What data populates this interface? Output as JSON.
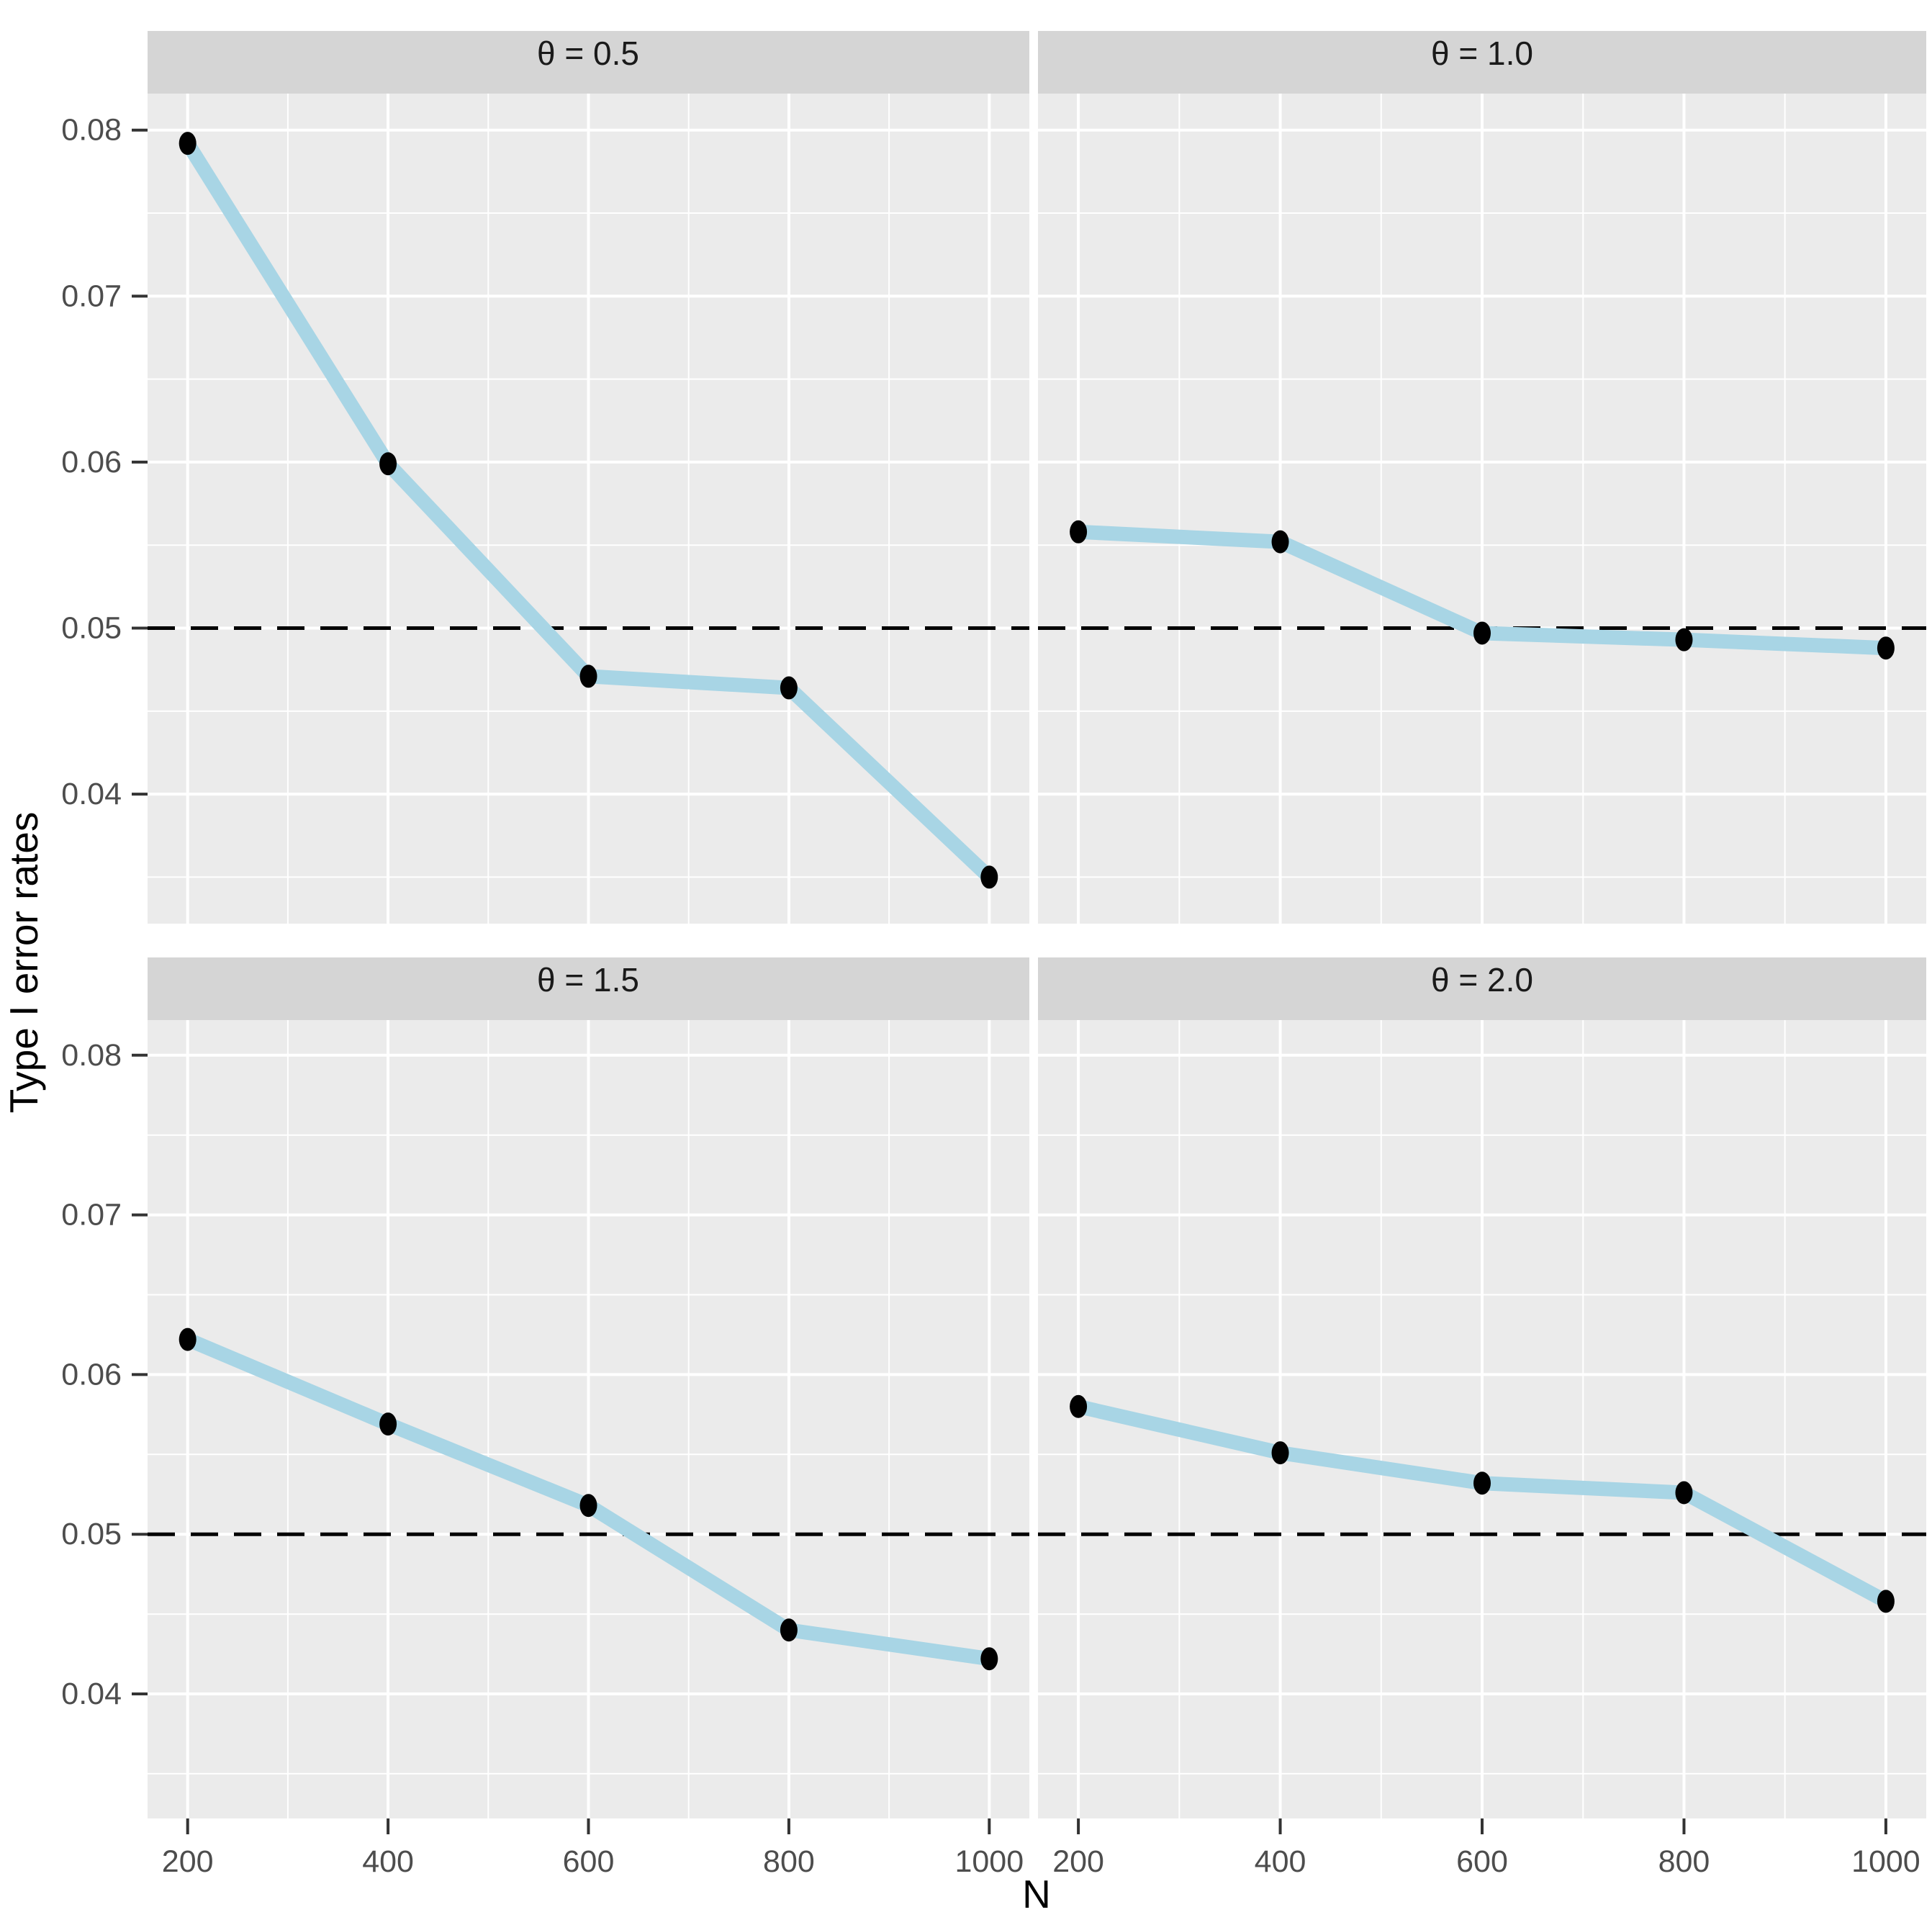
{
  "figure": {
    "kind": "faceted line chart (ggplot style), 2x2 facet grid, no legend",
    "x_axis_title": "N",
    "y_axis_title": "Type I error rates"
  },
  "colors": {
    "page_background": "#FFFFFF",
    "panel_background": "#EBEBEB",
    "strip_background": "#D5D5D5",
    "gridline": "#FFFFFF",
    "series_line": "#A8D5E5",
    "data_point": "#010101",
    "reference_line": "#000000",
    "tick_text": "#4D4D4D",
    "strip_text": "#1A1A1A",
    "axis_title_text": "#000000",
    "tick_mark": "#333333"
  },
  "chart_data": {
    "type": "line",
    "title": "",
    "xlabel": "N",
    "ylabel": "Type I error rates",
    "facet_variable": "θ",
    "categories_x": [
      200,
      400,
      600,
      800,
      1000
    ],
    "facets": [
      {
        "label": "θ = 0.5",
        "x": [
          200,
          400,
          600,
          800,
          1000
        ],
        "y": [
          0.0792,
          0.0599,
          0.0471,
          0.0464,
          0.035
        ]
      },
      {
        "label": "θ = 1.0",
        "x": [
          200,
          400,
          600,
          800,
          1000
        ],
        "y": [
          0.0558,
          0.0552,
          0.0497,
          0.0493,
          0.0488
        ]
      },
      {
        "label": "θ = 1.5",
        "x": [
          200,
          400,
          600,
          800,
          1000
        ],
        "y": [
          0.0622,
          0.0569,
          0.0518,
          0.044,
          0.0422
        ]
      },
      {
        "label": "θ = 2.0",
        "x": [
          200,
          400,
          600,
          800,
          1000
        ],
        "y": [
          0.058,
          0.0551,
          0.0532,
          0.0526,
          0.0458
        ]
      }
    ],
    "x_ticks": [
      200,
      400,
      600,
      800,
      1000
    ],
    "x_minor_ticks": [
      300,
      500,
      700,
      900
    ],
    "y_ticks": [
      0.04,
      0.05,
      0.06,
      0.07,
      0.08
    ],
    "y_minor_ticks": [
      0.035,
      0.045,
      0.055,
      0.065,
      0.075
    ],
    "y_tick_decimals": 2,
    "xlim": [
      160,
      1040
    ],
    "ylim": [
      0.0322,
      0.0822
    ],
    "reference_line_y": 0.05,
    "reference_line_style": "dashed",
    "grid": true,
    "legend_position": "none"
  }
}
